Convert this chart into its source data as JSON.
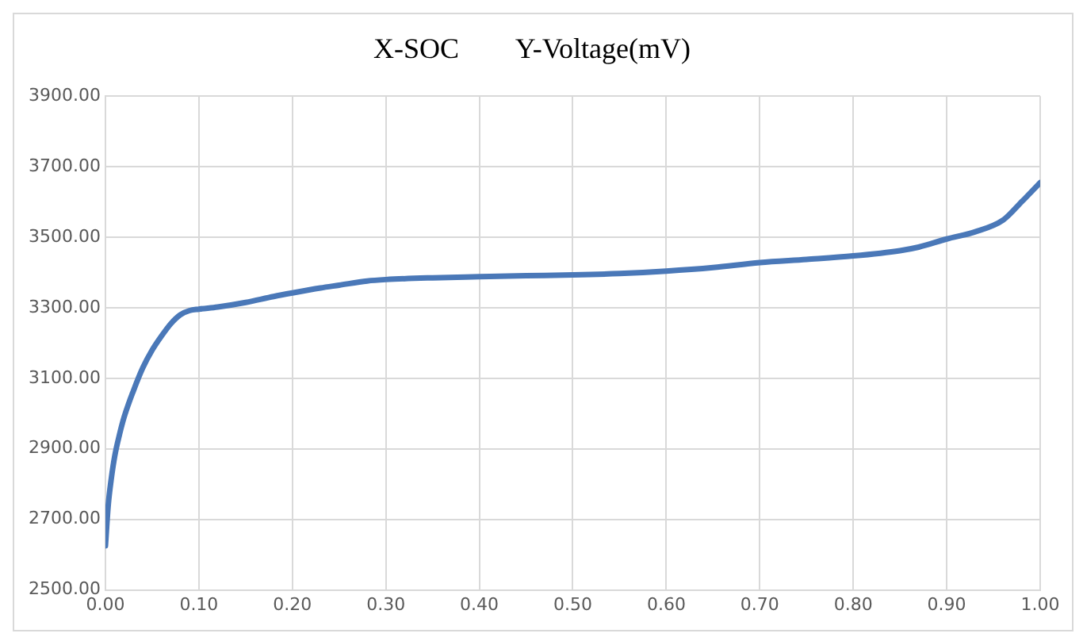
{
  "chart_data": {
    "type": "line",
    "title": "X-SOC        Y-Voltage(mV)",
    "x": [
      0,
      0.003,
      0.006,
      0.01,
      0.015,
      0.02,
      0.03,
      0.04,
      0.05,
      0.06,
      0.07,
      0.08,
      0.09,
      0.1,
      0.12,
      0.15,
      0.18,
      0.2,
      0.23,
      0.25,
      0.28,
      0.3,
      0.35,
      0.4,
      0.45,
      0.5,
      0.55,
      0.6,
      0.65,
      0.7,
      0.75,
      0.8,
      0.85,
      0.87,
      0.9,
      0.93,
      0.96,
      0.98,
      1.0
    ],
    "series": [
      {
        "color": "#4a78b8",
        "values": [
          2625,
          2740,
          2810,
          2880,
          2940,
          2990,
          3065,
          3130,
          3180,
          3220,
          3255,
          3280,
          3292,
          3296,
          3302,
          3315,
          3332,
          3342,
          3356,
          3364,
          3376,
          3380,
          3385,
          3388,
          3391,
          3393,
          3397,
          3404,
          3414,
          3428,
          3437,
          3447,
          3462,
          3472,
          3495,
          3515,
          3548,
          3600,
          3655
        ]
      }
    ],
    "xlim": [
      0,
      1
    ],
    "xticks": [
      {
        "value": 0,
        "label": "0.00"
      },
      {
        "value": 0.1,
        "label": "0.10"
      },
      {
        "value": 0.2,
        "label": "0.20"
      },
      {
        "value": 0.3,
        "label": "0.30"
      },
      {
        "value": 0.4,
        "label": "0.40"
      },
      {
        "value": 0.5,
        "label": "0.50"
      },
      {
        "value": 0.6,
        "label": "0.60"
      },
      {
        "value": 0.7,
        "label": "0.70"
      },
      {
        "value": 0.8,
        "label": "0.80"
      },
      {
        "value": 0.9,
        "label": "0.90"
      },
      {
        "value": 1,
        "label": "1.00"
      }
    ],
    "ylim": [
      2500,
      3900
    ],
    "yticks": [
      {
        "value": 2500,
        "label": "2500.00"
      },
      {
        "value": 2700,
        "label": "2700.00"
      },
      {
        "value": 2900,
        "label": "2900.00"
      },
      {
        "value": 3100,
        "label": "3100.00"
      },
      {
        "value": 3300,
        "label": "3300.00"
      },
      {
        "value": 3500,
        "label": "3500.00"
      },
      {
        "value": 3700,
        "label": "3700.00"
      },
      {
        "value": 3900,
        "label": "3900.00"
      }
    ],
    "grid": true,
    "marker": "none",
    "line_style": "solid",
    "legend": false
  }
}
